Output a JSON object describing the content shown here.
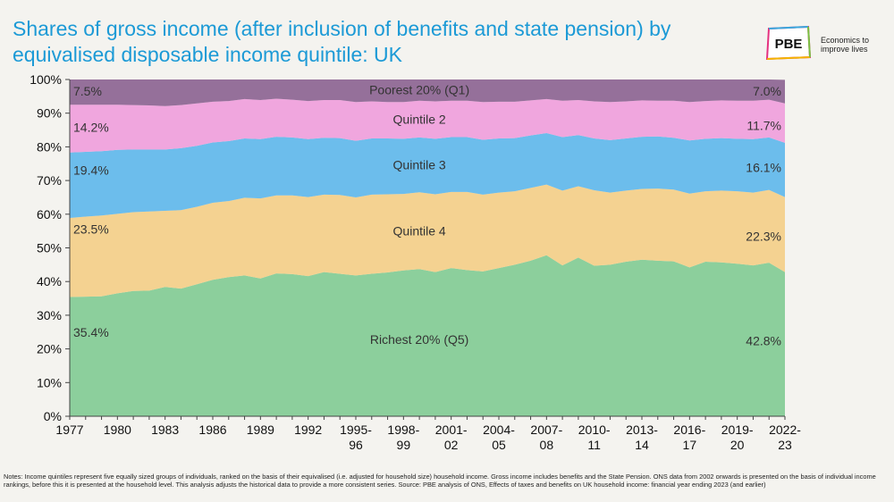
{
  "header": {
    "title": "Shares of gross income (after inclusion of benefits and state pension) by equivalised disposable income quintile: UK"
  },
  "logo": {
    "name": "PBE",
    "tagline_line1": "Economics to",
    "tagline_line2": "improve lives"
  },
  "notes": {
    "text": "Notes: Income quintiles represent five equally sized groups of individuals, ranked on the basis of their equivalised (i.e. adjusted for household size) household income. Gross income includes benefits and the State Pension. ONS data from 2002 onwards is presented on the basis of individual income rankings, before this it is presented at the household level. This analysis adjusts the historical data to provide a more consistent series. Source: PBE analysis of ONS, Effects of taxes and benefits on UK household income: financial year ending 2023 (and earlier)"
  },
  "chart_data": {
    "type": "area",
    "stacked": true,
    "x": [
      "1977",
      "1978",
      "1979",
      "1980",
      "1981",
      "1982",
      "1983",
      "1984",
      "1985",
      "1986",
      "1987",
      "1988",
      "1989",
      "1990",
      "1991",
      "1992",
      "1993",
      "1994",
      "1995-96",
      "1996-97",
      "1997-98",
      "1998-99",
      "1999-00",
      "2000-01",
      "2001-02",
      "2002-03",
      "2003-04",
      "2004-05",
      "2005-06",
      "2006-07",
      "2007-08",
      "2008-09",
      "2009-10",
      "2010-11",
      "2011-12",
      "2012-13",
      "2013-14",
      "2014-15",
      "2015-16",
      "2016-17",
      "2017-18",
      "2018-19",
      "2019-20",
      "2020-21",
      "2021-22",
      "2022-23"
    ],
    "xtick_labels": [
      {
        "i": 0,
        "lines": [
          "1977"
        ]
      },
      {
        "i": 3,
        "lines": [
          "1980"
        ]
      },
      {
        "i": 6,
        "lines": [
          "1983"
        ]
      },
      {
        "i": 9,
        "lines": [
          "1986"
        ]
      },
      {
        "i": 12,
        "lines": [
          "1989"
        ]
      },
      {
        "i": 15,
        "lines": [
          "1992"
        ]
      },
      {
        "i": 18,
        "lines": [
          "1995-",
          "96"
        ]
      },
      {
        "i": 21,
        "lines": [
          "1998-",
          "99"
        ]
      },
      {
        "i": 24,
        "lines": [
          "2001-",
          "02"
        ]
      },
      {
        "i": 27,
        "lines": [
          "2004-",
          "05"
        ]
      },
      {
        "i": 30,
        "lines": [
          "2007-",
          "08"
        ]
      },
      {
        "i": 33,
        "lines": [
          "2010-",
          "11"
        ]
      },
      {
        "i": 36,
        "lines": [
          "2013-",
          "14"
        ]
      },
      {
        "i": 39,
        "lines": [
          "2016-",
          "17"
        ]
      },
      {
        "i": 42,
        "lines": [
          "2019-",
          "20"
        ]
      },
      {
        "i": 45,
        "lines": [
          "2022-",
          "23"
        ]
      }
    ],
    "ylim": [
      0,
      100
    ],
    "yticks": [
      "0%",
      "10%",
      "20%",
      "30%",
      "40%",
      "50%",
      "60%",
      "70%",
      "80%",
      "90%",
      "100%"
    ],
    "series": [
      {
        "name": "Richest 20% (Q5)",
        "color": "#82cc95",
        "values": [
          35.4,
          35.5,
          35.6,
          36.5,
          37.2,
          37.3,
          38.4,
          37.9,
          39.2,
          40.5,
          41.3,
          41.8,
          40.9,
          42.4,
          42.2,
          41.6,
          42.8,
          42.3,
          41.8,
          42.3,
          42.7,
          43.3,
          43.7,
          42.8,
          44.0,
          43.4,
          43.0,
          44.0,
          45.0,
          46.2,
          47.8,
          44.8,
          47.1,
          44.7,
          45.0,
          45.9,
          46.5,
          46.2,
          46.0,
          44.2,
          45.9,
          45.7,
          45.3,
          44.8,
          45.6,
          42.8
        ],
        "label_start": "35.4%",
        "label_end": "42.8%"
      },
      {
        "name": "Quintile 4",
        "color": "#f3cf89",
        "values": [
          23.5,
          23.8,
          24.0,
          23.6,
          23.4,
          23.5,
          22.6,
          23.3,
          23.0,
          22.9,
          22.6,
          23.1,
          23.8,
          23.2,
          23.4,
          23.5,
          23.0,
          23.4,
          23.2,
          23.5,
          23.2,
          22.7,
          22.8,
          23.1,
          22.6,
          23.2,
          22.8,
          22.4,
          21.8,
          21.6,
          21.0,
          22.2,
          21.2,
          22.4,
          21.4,
          21.1,
          21.0,
          21.4,
          21.3,
          21.9,
          20.9,
          21.3,
          21.5,
          21.6,
          21.6,
          22.3
        ],
        "label_start": "23.5%",
        "label_end": "22.3%"
      },
      {
        "name": "Quintile 3",
        "color": "#5fb8ec",
        "values": [
          19.4,
          19.2,
          19.1,
          19.0,
          18.6,
          18.4,
          18.2,
          18.4,
          18.1,
          17.9,
          17.8,
          17.6,
          17.6,
          17.4,
          17.2,
          17.2,
          16.9,
          16.9,
          16.8,
          16.7,
          16.6,
          16.4,
          16.3,
          16.5,
          16.3,
          16.3,
          16.3,
          16.1,
          15.8,
          15.6,
          15.3,
          15.9,
          15.2,
          15.4,
          15.6,
          15.5,
          15.5,
          15.5,
          15.4,
          15.8,
          15.6,
          15.6,
          15.6,
          15.9,
          15.6,
          16.1
        ],
        "label_start": "19.4%",
        "label_end": "16.1%"
      },
      {
        "name": "Quintile 2",
        "color": "#ef9fdc",
        "values": [
          14.2,
          14.0,
          13.8,
          13.4,
          13.2,
          13.1,
          12.9,
          12.8,
          12.6,
          12.1,
          11.9,
          11.7,
          11.6,
          11.3,
          11.2,
          11.3,
          11.2,
          11.3,
          11.5,
          11.0,
          10.8,
          10.9,
          10.9,
          11.1,
          10.8,
          10.8,
          11.2,
          10.9,
          10.8,
          10.4,
          10.1,
          10.8,
          10.4,
          11.0,
          11.3,
          11.0,
          10.8,
          10.6,
          11.0,
          11.4,
          11.2,
          11.2,
          11.3,
          11.4,
          11.2,
          11.7
        ],
        "label_start": "14.2%",
        "label_end": "11.7%"
      },
      {
        "name": "Poorest 20% (Q1)",
        "color": "#8c6592",
        "values": [
          7.5,
          7.5,
          7.5,
          7.5,
          7.6,
          7.7,
          7.9,
          7.6,
          7.1,
          6.6,
          6.4,
          5.8,
          6.1,
          5.7,
          6.0,
          6.4,
          6.1,
          6.1,
          6.7,
          6.5,
          6.7,
          6.7,
          6.3,
          6.5,
          6.3,
          6.3,
          6.7,
          6.6,
          6.6,
          6.2,
          5.8,
          6.3,
          6.1,
          6.5,
          6.7,
          6.5,
          6.2,
          6.3,
          6.3,
          6.7,
          6.4,
          6.2,
          6.3,
          6.3,
          6.0,
          7.0
        ],
        "label_start": "7.5%",
        "label_end": "7.0%"
      }
    ]
  }
}
